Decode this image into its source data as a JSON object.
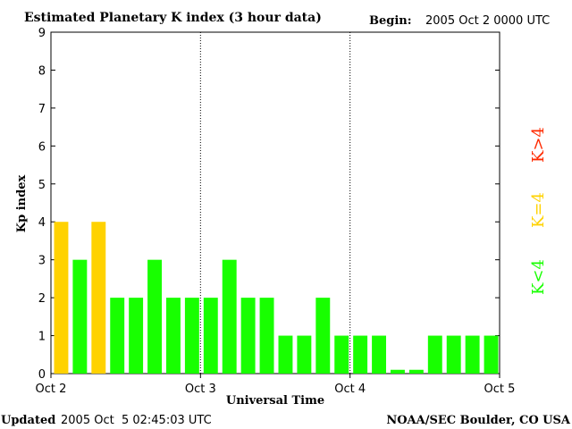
{
  "chart_data": {
    "type": "bar",
    "title": "Estimated Planetary K index (3 hour data)",
    "begin_label": "Begin:",
    "begin_value": "2005 Oct 2 0000 UTC",
    "ylabel": "Kp index",
    "xlabel": "Universal Time",
    "ylim": [
      0,
      9
    ],
    "yticks": [
      0,
      1,
      2,
      3,
      4,
      5,
      6,
      7,
      8,
      9
    ],
    "x_tick_labels": [
      "Oct 2",
      "Oct 3",
      "Oct 4",
      "Oct 5"
    ],
    "bars_per_day": 8,
    "values": [
      4,
      3,
      4,
      2,
      2,
      3,
      2,
      2,
      2,
      3,
      2,
      2,
      1,
      1,
      2,
      1,
      1,
      1,
      0.1,
      0.1,
      1,
      1,
      1,
      1
    ],
    "legend": [
      {
        "label": "K<4",
        "color": "#18ff00"
      },
      {
        "label": "K=4",
        "color": "#ffd200"
      },
      {
        "label": "K>4",
        "color": "#ff2a00"
      }
    ],
    "grid": "vertical dotted day separators",
    "legend_placement": "right"
  },
  "footer": {
    "updated_label": "Updated",
    "updated_value": "2005 Oct  5 02:45:03 UTC",
    "source": "NOAA/SEC Boulder, CO USA"
  },
  "colors": {
    "below": "#18ff00",
    "equal": "#ffd200",
    "above": "#ff2a00"
  }
}
